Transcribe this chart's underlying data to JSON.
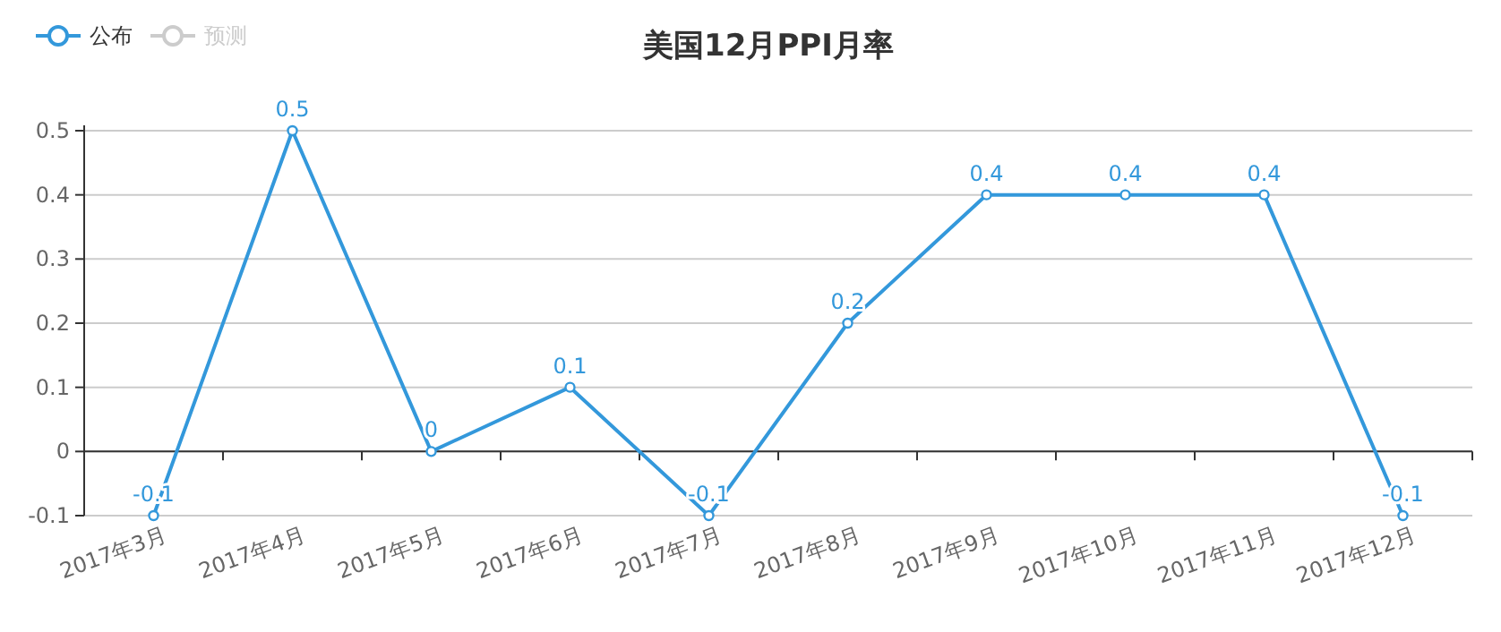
{
  "chart_data": {
    "type": "line",
    "title": "美国12月PPI月率",
    "categories": [
      "2017年3月",
      "2017年4月",
      "2017年5月",
      "2017年6月",
      "2017年7月",
      "2017年8月",
      "2017年9月",
      "2017年10月",
      "2017年11月",
      "2017年12月"
    ],
    "series": [
      {
        "name": "公布",
        "color": "#3398db",
        "values": [
          -0.1,
          0.5,
          0,
          0.1,
          -0.1,
          0.2,
          0.4,
          0.4,
          0.4,
          -0.1
        ]
      },
      {
        "name": "预测",
        "color": "#cccccc",
        "values": [
          null,
          null,
          null,
          null,
          null,
          null,
          null,
          null,
          null,
          null
        ]
      }
    ],
    "ylim": [
      -0.1,
      0.5
    ],
    "yticks": [
      -0.1,
      0,
      0.1,
      0.2,
      0.3,
      0.4,
      0.5
    ],
    "grid": "y",
    "legend": "top left",
    "marker": "circle",
    "data_labels": true
  }
}
